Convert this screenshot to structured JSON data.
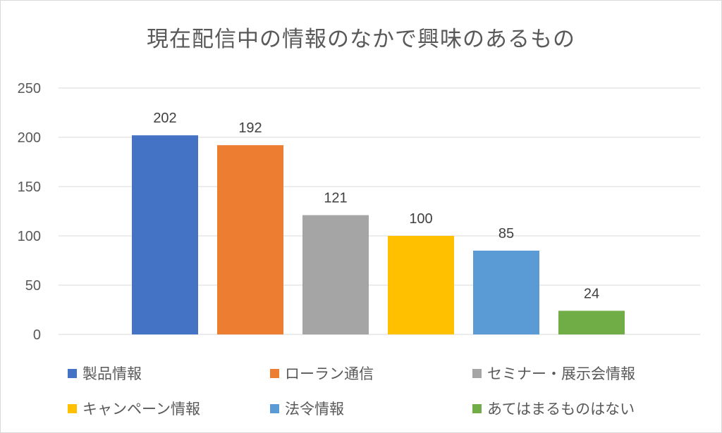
{
  "chart_data": {
    "type": "bar",
    "title": "現在配信中の情報のなかで興味のあるもの",
    "categories": [
      "製品情報",
      "ローラン通信",
      "セミナー・展示会情報",
      "キャンペーン情報",
      "法令情報",
      "あてはまるものはない"
    ],
    "values": [
      202,
      192,
      121,
      100,
      85,
      24
    ],
    "colors": [
      "#4472C4",
      "#ED7D31",
      "#A5A5A5",
      "#FFC000",
      "#5B9BD5",
      "#70AD47"
    ],
    "ylim": [
      0,
      250
    ],
    "yticks": [
      "0",
      "50",
      "100",
      "150",
      "200",
      "250"
    ],
    "xlabel": "",
    "ylabel": "",
    "grid": true,
    "legend_position": "bottom"
  }
}
